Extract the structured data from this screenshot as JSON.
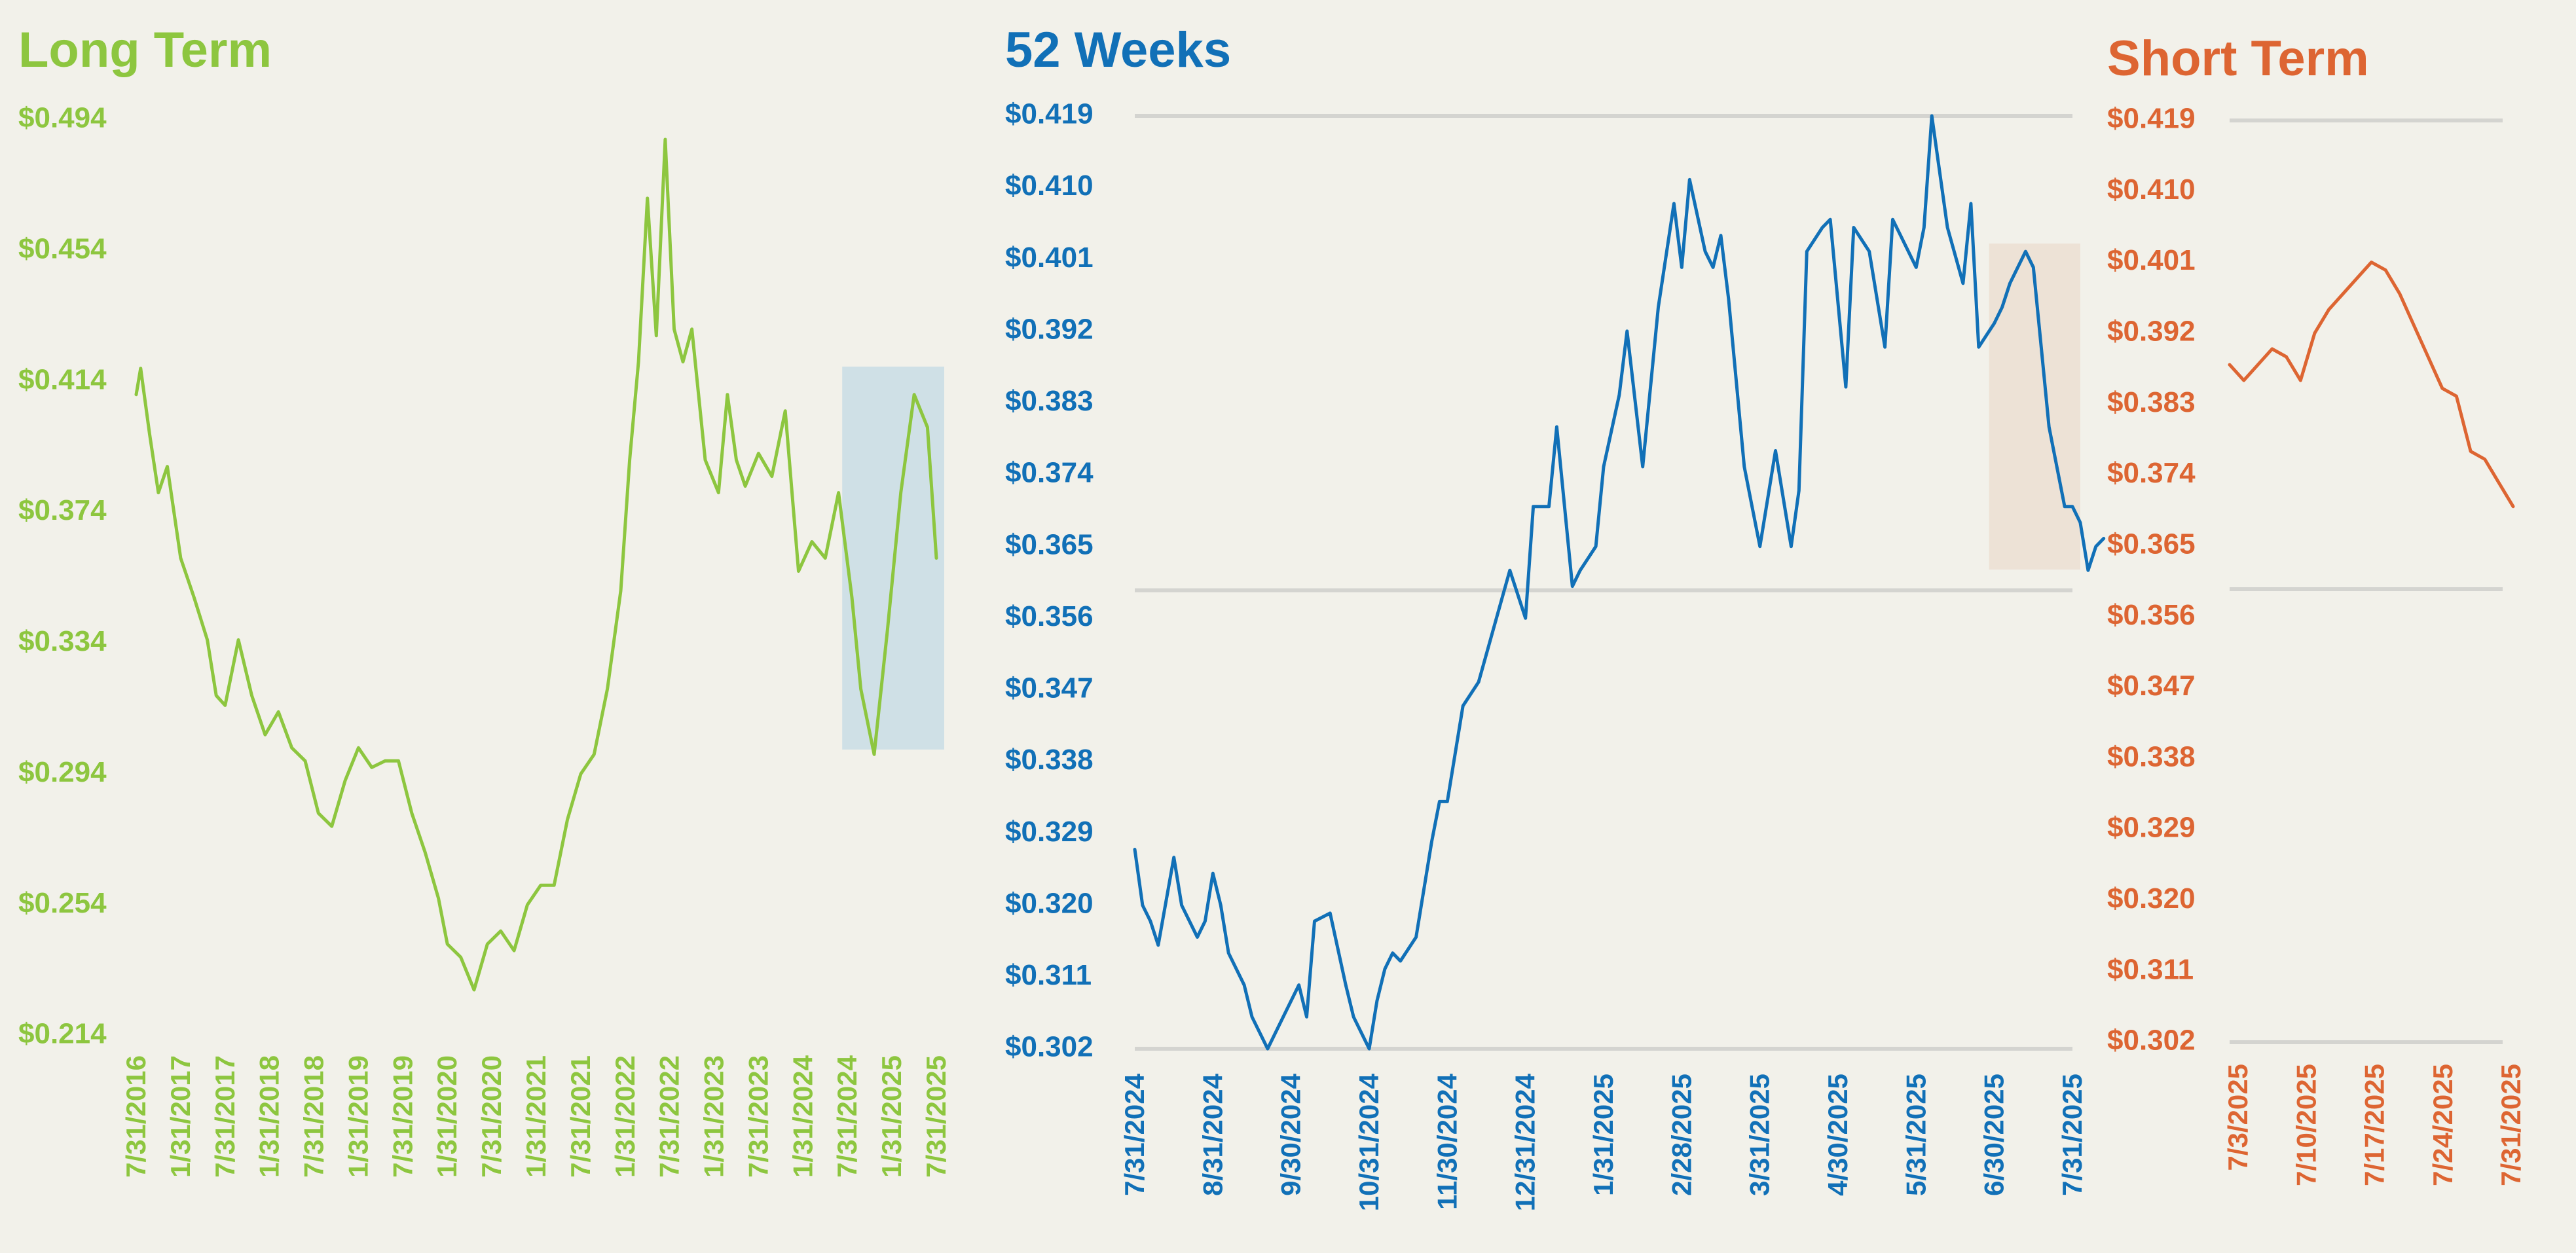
{
  "chart_data": [
    {
      "type": "line",
      "title": "Long Term",
      "color": "#8dc63f",
      "highlight_color": "#cfe0e6",
      "y_ticks": [
        "$0.494",
        "$0.454",
        "$0.414",
        "$0.374",
        "$0.334",
        "$0.294",
        "$0.254",
        "$0.214"
      ],
      "ylim": [
        0.214,
        0.494
      ],
      "x_ticks": [
        "7/31/2016",
        "1/31/2017",
        "7/31/2017",
        "1/31/2018",
        "7/31/2018",
        "1/31/2019",
        "7/31/2019",
        "1/31/2020",
        "7/31/2020",
        "1/31/2021",
        "7/31/2021",
        "1/31/2022",
        "7/31/2022",
        "1/31/2023",
        "7/31/2023",
        "1/31/2024",
        "7/31/2024",
        "1/31/2025",
        "7/31/2025"
      ],
      "highlight_range": [
        "7/31/2024",
        "7/31/2025"
      ],
      "series": [
        {
          "x": [
            0,
            0.1,
            0.3,
            0.5,
            0.7,
            1,
            1.3,
            1.6,
            1.8,
            2,
            2.3,
            2.6,
            2.9,
            3.2,
            3.5,
            3.8,
            4.1,
            4.4,
            4.7,
            5,
            5.3,
            5.6,
            5.9,
            6.2,
            6.5,
            6.8,
            7,
            7.3,
            7.6,
            7.9,
            8.2,
            8.5,
            8.8,
            9.1,
            9.4,
            9.7,
            10,
            10.3,
            10.6,
            10.9,
            11.1,
            11.3,
            11.5,
            11.7,
            11.9,
            12.1,
            12.3,
            12.5,
            12.8,
            13.1,
            13.3,
            13.5,
            13.7,
            14,
            14.3,
            14.6,
            14.9,
            15.2,
            15.5,
            15.8,
            16.1,
            16.3,
            16.6,
            16.9,
            17.2,
            17.5,
            17.8,
            18
          ],
          "y": [
            0.41,
            0.418,
            0.398,
            0.38,
            0.388,
            0.36,
            0.348,
            0.335,
            0.318,
            0.315,
            0.335,
            0.318,
            0.306,
            0.313,
            0.302,
            0.298,
            0.282,
            0.278,
            0.292,
            0.302,
            0.296,
            0.298,
            0.298,
            0.282,
            0.27,
            0.256,
            0.242,
            0.238,
            0.228,
            0.242,
            0.246,
            0.24,
            0.254,
            0.26,
            0.26,
            0.28,
            0.294,
            0.3,
            0.32,
            0.35,
            0.39,
            0.42,
            0.47,
            0.428,
            0.488,
            0.43,
            0.42,
            0.43,
            0.39,
            0.38,
            0.41,
            0.39,
            0.382,
            0.392,
            0.385,
            0.405,
            0.356,
            0.365,
            0.36,
            0.38,
            0.348,
            0.32,
            0.3,
            0.338,
            0.38,
            0.41,
            0.4,
            0.36
          ]
        }
      ]
    },
    {
      "type": "line",
      "title": "52 Weeks",
      "color": "#1170b7",
      "highlight_color": "#ede2d6",
      "y_ticks": [
        "$0.419",
        "$0.410",
        "$0.401",
        "$0.392",
        "$0.383",
        "$0.374",
        "$0.365",
        "$0.356",
        "$0.347",
        "$0.338",
        "$0.329",
        "$0.320",
        "$0.311",
        "$0.302"
      ],
      "ylim": [
        0.302,
        0.419
      ],
      "reference_lines": [
        0.419,
        0.3595,
        0.302
      ],
      "x_ticks": [
        "7/31/2024",
        "8/31/2024",
        "9/30/2024",
        "10/31/2024",
        "11/30/2024",
        "12/31/2024",
        "1/31/2025",
        "2/28/2025",
        "3/31/2025",
        "4/30/2025",
        "5/31/2025",
        "6/30/2025",
        "7/31/2025"
      ],
      "highlight_range": [
        "6/30/2025",
        "7/31/2025"
      ],
      "series": [
        {
          "x": [
            0,
            0.1,
            0.2,
            0.3,
            0.5,
            0.6,
            0.8,
            0.9,
            1,
            1.1,
            1.2,
            1.4,
            1.5,
            1.7,
            1.9,
            2,
            2.1,
            2.2,
            2.3,
            2.5,
            2.7,
            2.8,
            3,
            3.1,
            3.2,
            3.3,
            3.4,
            3.6,
            3.8,
            3.9,
            4,
            4.2,
            4.4,
            4.6,
            4.8,
            5,
            5.1,
            5.3,
            5.4,
            5.6,
            5.7,
            5.9,
            6,
            6.2,
            6.3,
            6.5,
            6.7,
            6.9,
            7,
            7.1,
            7.3,
            7.4,
            7.5,
            7.6,
            7.8,
            7.9,
            8,
            8.2,
            8.4,
            8.5,
            8.6,
            8.8,
            8.9,
            9.1,
            9.2,
            9.4,
            9.6,
            9.7,
            9.8,
            10,
            10.1,
            10.2,
            10.4,
            10.6,
            10.7,
            10.8,
            11,
            11.1,
            11.2,
            11.4,
            11.5,
            11.6,
            11.7,
            11.9,
            12,
            12.1,
            12.2,
            12.3,
            12.4
          ],
          "y": [
            0.327,
            0.32,
            0.318,
            0.315,
            0.326,
            0.32,
            0.316,
            0.318,
            0.324,
            0.32,
            0.314,
            0.31,
            0.306,
            0.302,
            0.306,
            0.308,
            0.31,
            0.306,
            0.318,
            0.319,
            0.31,
            0.306,
            0.302,
            0.308,
            0.312,
            0.314,
            0.313,
            0.316,
            0.328,
            0.333,
            0.333,
            0.345,
            0.348,
            0.355,
            0.362,
            0.356,
            0.37,
            0.37,
            0.38,
            0.36,
            0.362,
            0.365,
            0.375,
            0.384,
            0.392,
            0.375,
            0.395,
            0.408,
            0.4,
            0.411,
            0.402,
            0.4,
            0.404,
            0.396,
            0.375,
            0.37,
            0.365,
            0.377,
            0.365,
            0.372,
            0.402,
            0.405,
            0.406,
            0.385,
            0.405,
            0.402,
            0.39,
            0.406,
            0.404,
            0.4,
            0.405,
            0.419,
            0.405,
            0.398,
            0.408,
            0.39,
            0.393,
            0.395,
            0.398,
            0.402,
            0.4,
            0.39,
            0.38,
            0.37,
            0.37,
            0.368,
            0.362,
            0.365,
            0.366
          ]
        }
      ]
    },
    {
      "type": "line",
      "title": "Short Term",
      "color": "#dd6532",
      "y_ticks": [
        "$0.419",
        "$0.410",
        "$0.401",
        "$0.392",
        "$0.383",
        "$0.374",
        "$0.365",
        "$0.356",
        "$0.347",
        "$0.338",
        "$0.329",
        "$0.320",
        "$0.311",
        "$0.302"
      ],
      "ylim": [
        0.302,
        0.419
      ],
      "reference_lines": [
        0.419,
        0.3595,
        0.302
      ],
      "x_ticks": [
        "7/3/2025",
        "7/10/2025",
        "7/17/2025",
        "7/24/2025",
        "7/31/2025"
      ],
      "series": [
        {
          "x": [
            0,
            1,
            3,
            4,
            5,
            6,
            7,
            9,
            10,
            11,
            12,
            13,
            14,
            15,
            16,
            17,
            18,
            19,
            20
          ],
          "y": [
            0.388,
            0.386,
            0.39,
            0.389,
            0.386,
            0.392,
            0.395,
            0.399,
            0.401,
            0.4,
            0.397,
            0.393,
            0.389,
            0.385,
            0.384,
            0.377,
            0.376,
            0.373,
            0.37
          ]
        }
      ]
    }
  ]
}
